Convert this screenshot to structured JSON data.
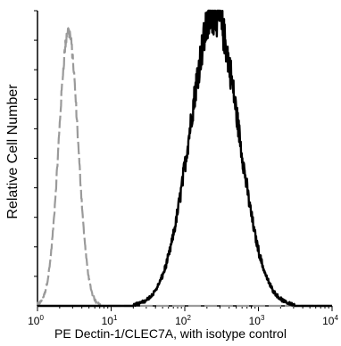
{
  "chart_data": {
    "type": "line",
    "ylabel": "Relative Cell Number",
    "xlabel": "PE  Dectin-1/CLEC7A,  with isotype control",
    "xscale": "log",
    "xlim": [
      1,
      10000
    ],
    "x_ticks": [
      {
        "base": "10",
        "exp": "0",
        "value": 1
      },
      {
        "base": "10",
        "exp": "1",
        "value": 10
      },
      {
        "base": "10",
        "exp": "2",
        "value": 100
      },
      {
        "base": "10",
        "exp": "3",
        "value": 1000
      },
      {
        "base": "10",
        "exp": "4",
        "value": 10000
      }
    ],
    "ylim": [
      0,
      1
    ],
    "y_tick_count": 10,
    "grid": false,
    "series": [
      {
        "role": "isotype control",
        "color": "#9a9a9a",
        "style": "dashed",
        "center_log": 0.42,
        "width_log": 0.13,
        "peak": 0.93
      },
      {
        "role": "Dectin-1/CLEC7A",
        "color": "#000000",
        "style": "solid",
        "center_log": 2.4,
        "width_log": 0.33,
        "peak": 0.99
      }
    ]
  }
}
